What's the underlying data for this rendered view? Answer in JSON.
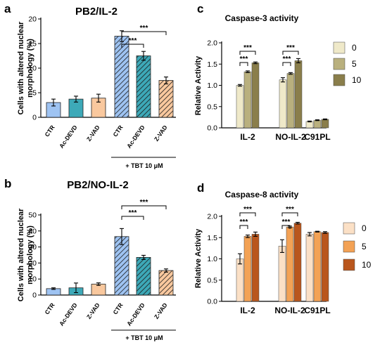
{
  "chart_data": [
    {
      "panel": "a",
      "type": "bar",
      "title": "PB2/IL-2",
      "ylabel": "Cells with altered nuclear morphology (%)",
      "ylim": [
        0,
        20
      ],
      "yticks": [
        "0",
        "5",
        "10",
        "15",
        "20"
      ],
      "categories": [
        "CTR",
        "Ac-DEVD",
        "Z-VAD",
        "CTR",
        "Ac-DEVD",
        "Z-VAD"
      ],
      "values": [
        3.0,
        3.7,
        3.9,
        16.5,
        12.5,
        7.5
      ],
      "errors": [
        0.7,
        0.6,
        0.8,
        1.1,
        0.9,
        0.7
      ],
      "colors": [
        "#9ec3f2",
        "#3da9b8",
        "#f9c89e",
        "#9ec3f2",
        "#3da9b8",
        "#f9c89e"
      ],
      "hatched": [
        false,
        false,
        false,
        true,
        true,
        true
      ],
      "treatment": "+ TBT 10 μM",
      "significance": [
        "***",
        "***"
      ]
    },
    {
      "panel": "b",
      "type": "bar",
      "title": "PB2/NO-IL-2",
      "ylabel": "Cells with altered nuclear morphology (%)",
      "ylim": [
        0,
        50
      ],
      "yticks": [
        "0",
        "10",
        "20",
        "30",
        "40",
        "50"
      ],
      "categories": [
        "CTR",
        "Ac-DEVD",
        "Z-VAD",
        "CTR",
        "Ac-DEVD",
        "Z-VAD"
      ],
      "values": [
        4.0,
        4.5,
        6.8,
        36.5,
        23.5,
        15.3
      ],
      "errors": [
        0.5,
        3.0,
        0.8,
        5.0,
        1.3,
        1.0
      ],
      "colors": [
        "#9ec3f2",
        "#3da9b8",
        "#f9c89e",
        "#9ec3f2",
        "#3da9b8",
        "#f9c89e"
      ],
      "hatched": [
        false,
        false,
        false,
        true,
        true,
        true
      ],
      "treatment": "+ TBT 10 μM",
      "significance": [
        "***",
        "***"
      ]
    },
    {
      "panel": "c",
      "type": "bar",
      "title": "Caspase-3 activity",
      "ylabel": "Relative Activity",
      "ylim": [
        0,
        2.0
      ],
      "yticks": [
        "0.0",
        "0.5",
        "1.0",
        "1.5",
        "2.0"
      ],
      "categories": [
        "IL-2",
        "NO-IL-2",
        "C91PL"
      ],
      "series": [
        {
          "name": "0",
          "color": "#efe9c9",
          "values": [
            1.0,
            1.13,
            0.15
          ],
          "errors": [
            0.02,
            0.05,
            0.01
          ]
        },
        {
          "name": "5",
          "color": "#b9b07e",
          "values": [
            1.32,
            1.28,
            0.18
          ],
          "errors": [
            0.02,
            0.02,
            0.01
          ]
        },
        {
          "name": "10",
          "color": "#8a7e4b",
          "values": [
            1.53,
            1.58,
            0.2
          ],
          "errors": [
            0.02,
            0.05,
            0.01
          ]
        }
      ],
      "significance": [
        "***",
        "***",
        "***",
        "***"
      ]
    },
    {
      "panel": "d",
      "type": "bar",
      "title": "Caspase-8 activity",
      "ylabel": "Relative Activity",
      "ylim": [
        0,
        2.0
      ],
      "yticks": [
        "0.0",
        "0.5",
        "1.0",
        "1.5",
        "2.0"
      ],
      "categories": [
        "IL-2",
        "NO-IL-2",
        "C91PL"
      ],
      "series": [
        {
          "name": "0",
          "color": "#fbe0c6",
          "values": [
            1.0,
            1.3,
            1.58
          ],
          "errors": [
            0.12,
            0.15,
            0.04
          ]
        },
        {
          "name": "5",
          "color": "#f3a255",
          "values": [
            1.53,
            1.75,
            1.64
          ],
          "errors": [
            0.03,
            0.02,
            0.01
          ]
        },
        {
          "name": "10",
          "color": "#b9561d",
          "values": [
            1.58,
            1.84,
            1.62
          ],
          "errors": [
            0.05,
            0.02,
            0.02
          ]
        }
      ],
      "significance": [
        "***",
        "***",
        "***",
        "***"
      ]
    }
  ]
}
